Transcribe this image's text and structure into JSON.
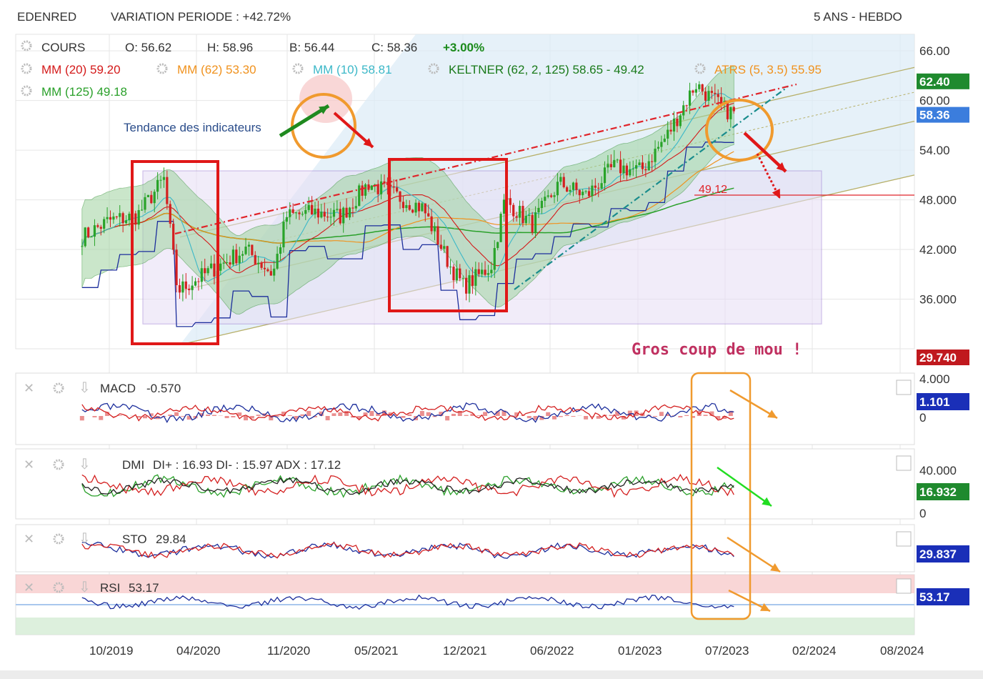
{
  "header": {
    "ticker": "EDENRED",
    "variation": "VARIATION PERIODE : +42.72%",
    "period": "5 ANS - HEBDO"
  },
  "legend": {
    "row1": [
      {
        "key": "cours",
        "text": "COURS",
        "color": "#333333"
      },
      {
        "key": "open",
        "text": "O: 56.62",
        "color": "#333333"
      },
      {
        "key": "high",
        "text": "H: 58.96",
        "color": "#333333"
      },
      {
        "key": "low",
        "text": "B: 56.44",
        "color": "#333333"
      },
      {
        "key": "close",
        "text": "C: 58.36",
        "color": "#333333"
      },
      {
        "key": "change",
        "text": "+3.00%",
        "color": "#1a8a1a"
      }
    ],
    "row2": [
      {
        "key": "mm20",
        "text": "MM (20)  59.20",
        "color": "#d41a1a"
      },
      {
        "key": "mm62",
        "text": "MM (62)  53.30",
        "color": "#f0921e"
      },
      {
        "key": "mm10",
        "text": "MM (10)  58.81",
        "color": "#3cb8c8"
      },
      {
        "key": "keltner",
        "text": "KELTNER (62, 2, 125)  58.65 - 49.42",
        "color": "#1a7a1a"
      },
      {
        "key": "atrs",
        "text": "ATRS (5, 3.5)  55.95",
        "color": "#f0921e"
      }
    ],
    "row3": [
      {
        "key": "mm125",
        "text": "MM (125)  49.18",
        "color": "#2aa02a"
      }
    ]
  },
  "annotations": {
    "trend_label": "Tendance des indicateurs",
    "level_label": "49.12",
    "comment": "Gros coup de mou !"
  },
  "price_axis": {
    "ticks": [
      "66.00",
      "60.00",
      "54.00",
      "48.000",
      "42.000",
      "36.000"
    ],
    "badges": [
      {
        "text": "62.40",
        "color": "#1f8a2e"
      },
      {
        "text": "58.36",
        "color": "#3b7ddd"
      },
      {
        "text": "29.740",
        "color": "#c0191e"
      }
    ]
  },
  "x_axis": {
    "ticks": [
      "10/2019",
      "04/2020",
      "11/2020",
      "05/2021",
      "12/2021",
      "06/2022",
      "01/2023",
      "07/2023",
      "02/2024",
      "08/2024"
    ]
  },
  "panels": {
    "macd": {
      "label": "MACD",
      "value": "-0.570",
      "ticks": [
        "4.000",
        "0"
      ],
      "badge": "1.101",
      "badge_color": "#1a2fb8"
    },
    "dmi": {
      "label": "DMI",
      "values": "DI+ : 16.93  DI- : 15.97  ADX : 17.12",
      "ticks": [
        "40.000",
        "0"
      ],
      "badge": "16.932",
      "badge_color": "#1f8a2e"
    },
    "sto": {
      "label": "STO",
      "value": "29.84",
      "badge": "29.837",
      "badge_color": "#1a2fb8"
    },
    "rsi": {
      "label": "RSI",
      "value": "53.17",
      "badge": "53.17",
      "badge_color": "#1a2fb8"
    }
  },
  "chart_data": {
    "type": "candlestick",
    "title": "EDENRED",
    "ylim": [
      30,
      68
    ],
    "y_ticks": [
      36,
      42,
      48,
      54,
      60,
      66
    ],
    "x_ticks": [
      "10/2019",
      "04/2020",
      "11/2020",
      "05/2021",
      "12/2021",
      "06/2022",
      "01/2023",
      "07/2023",
      "02/2024",
      "08/2024"
    ],
    "close_series": [
      {
        "date": "2019-08",
        "close": 43.5
      },
      {
        "date": "2019-10",
        "close": 45.5
      },
      {
        "date": "2019-12",
        "close": 46.0
      },
      {
        "date": "2020-02",
        "close": 50.5
      },
      {
        "date": "2020-03",
        "close": 37.0
      },
      {
        "date": "2020-04",
        "close": 38.0
      },
      {
        "date": "2020-06",
        "close": 40.0
      },
      {
        "date": "2020-08",
        "close": 42.0
      },
      {
        "date": "2020-10",
        "close": 39.0
      },
      {
        "date": "2020-11",
        "close": 46.0
      },
      {
        "date": "2021-01",
        "close": 46.5
      },
      {
        "date": "2021-03",
        "close": 46.0
      },
      {
        "date": "2021-05",
        "close": 50.0
      },
      {
        "date": "2021-07",
        "close": 48.5
      },
      {
        "date": "2021-09",
        "close": 47.0
      },
      {
        "date": "2021-11",
        "close": 40.0
      },
      {
        "date": "2021-12",
        "close": 37.5
      },
      {
        "date": "2022-02",
        "close": 40.0
      },
      {
        "date": "2022-03",
        "close": 48.0
      },
      {
        "date": "2022-05",
        "close": 45.0
      },
      {
        "date": "2022-07",
        "close": 50.0
      },
      {
        "date": "2022-09",
        "close": 48.5
      },
      {
        "date": "2022-11",
        "close": 52.0
      },
      {
        "date": "2023-01",
        "close": 51.5
      },
      {
        "date": "2023-03",
        "close": 56.0
      },
      {
        "date": "2023-05",
        "close": 62.0
      },
      {
        "date": "2023-07",
        "close": 59.0
      },
      {
        "date": "2023-08",
        "close": 58.36
      }
    ],
    "levels": {
      "support": 49.12,
      "last": 58.36,
      "channel_high": 62.4,
      "low": 29.74
    }
  }
}
